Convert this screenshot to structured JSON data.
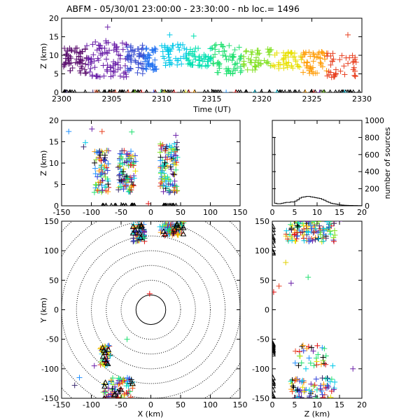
{
  "chart_data": [
    {
      "id": "time_height",
      "type": "scatter",
      "title": "ABFM - 05/30/01 23:00:00 - 23:30:00 - nb loc.=   1496",
      "xlabel": "Time (UT)",
      "ylabel": "Z (km)",
      "xlim": [
        2300,
        2330
      ],
      "ylim": [
        0,
        20
      ],
      "xticks": [
        "2300",
        "2305",
        "2310",
        "2315",
        "2320",
        "2325",
        "2330"
      ],
      "yticks": [
        "0",
        "5",
        "10",
        "15",
        "20"
      ],
      "clusters": [
        {
          "x": [
            2300.2,
            2302.5
          ],
          "y": [
            5,
            12
          ],
          "n": 60,
          "color": "#5b0f6e"
        },
        {
          "x": [
            2302.5,
            2306.5
          ],
          "y": [
            4,
            14
          ],
          "n": 90,
          "color": "#6a1fa8"
        },
        {
          "x": [
            2306.5,
            2308.3
          ],
          "y": [
            5,
            13
          ],
          "n": 50,
          "color": "#3a4fd0"
        },
        {
          "x": [
            2308.3,
            2309.5
          ],
          "y": [
            6,
            12
          ],
          "n": 35,
          "color": "#1f6ff0"
        },
        {
          "x": [
            2310,
            2312.5
          ],
          "y": [
            7,
            13
          ],
          "n": 45,
          "color": "#00c8e8"
        },
        {
          "x": [
            2312.5,
            2315
          ],
          "y": [
            7,
            12
          ],
          "n": 50,
          "color": "#00e0b0"
        },
        {
          "x": [
            2315,
            2318
          ],
          "y": [
            5,
            13
          ],
          "n": 60,
          "color": "#20e070"
        },
        {
          "x": [
            2318,
            2321
          ],
          "y": [
            6,
            12
          ],
          "n": 45,
          "color": "#80e020"
        },
        {
          "x": [
            2321,
            2324
          ],
          "y": [
            6,
            11
          ],
          "n": 45,
          "color": "#e8e000"
        },
        {
          "x": [
            2324,
            2326.5
          ],
          "y": [
            5,
            11
          ],
          "n": 45,
          "color": "#ff9a00"
        },
        {
          "x": [
            2326.5,
            2329.5
          ],
          "y": [
            4,
            11
          ],
          "n": 40,
          "color": "#e84020"
        }
      ],
      "ground_markers": {
        "y": 0,
        "n": 95,
        "x": [
          2300,
          2330
        ]
      },
      "outliers": [
        {
          "x": 2304.6,
          "y": 17.6,
          "color": "#6a1fa8"
        },
        {
          "x": 2310.8,
          "y": 15.5,
          "color": "#00c8e8"
        },
        {
          "x": 2313.2,
          "y": 15.2,
          "color": "#00e0b0"
        },
        {
          "x": 2328.6,
          "y": 15.5,
          "color": "#e84020"
        }
      ]
    },
    {
      "id": "x_height",
      "type": "scatter",
      "xlabel": "",
      "ylabel": "Z (km)",
      "xlim": [
        -150,
        150
      ],
      "ylim": [
        0,
        20
      ],
      "xticks": [
        "-150",
        "-100",
        "-50",
        "0",
        "50",
        "100",
        "150"
      ],
      "yticks": [
        "0",
        "5",
        "10",
        "15",
        "20"
      ],
      "clusters": [
        {
          "x": [
            -95,
            -70
          ],
          "y": [
            3,
            13
          ],
          "n": 70,
          "color": "mixed"
        },
        {
          "x": [
            -55,
            -25
          ],
          "y": [
            3,
            13
          ],
          "n": 90,
          "color": "mixed"
        },
        {
          "x": [
            15,
            45
          ],
          "y": [
            3,
            15
          ],
          "n": 110,
          "color": "mixed"
        }
      ],
      "ground_markers": [
        [
          -85,
          -40
        ],
        [
          -35,
          -25
        ],
        [
          20,
          48
        ]
      ],
      "outliers": [
        {
          "x": -138,
          "y": 17.4,
          "color": "#2090ff"
        },
        {
          "x": -113,
          "y": 13.8,
          "color": "#3a2a6e"
        },
        {
          "x": -110,
          "y": 14.8,
          "color": "#00c8e8"
        },
        {
          "x": -99,
          "y": 18.0,
          "color": "#6a1fa8"
        },
        {
          "x": -82,
          "y": 17.4,
          "color": "#e84020"
        },
        {
          "x": -32,
          "y": 17.3,
          "color": "#20e070"
        },
        {
          "x": 42,
          "y": 16.5,
          "color": "#6a1fa8"
        },
        {
          "x": -4,
          "y": 0.5,
          "color": "#e01010"
        }
      ]
    },
    {
      "id": "altitude_histogram",
      "type": "histogram",
      "xlabel": "",
      "ylabel": "number of sources",
      "xlim": [
        0,
        20
      ],
      "ylim": [
        0,
        1000
      ],
      "xticks": [
        "0",
        "5",
        "10",
        "15",
        "20"
      ],
      "yticks": [
        "0",
        "200",
        "400",
        "600",
        "800",
        "1000"
      ],
      "bin_edges": [
        0,
        0.5,
        1,
        1.5,
        2,
        2.5,
        3,
        3.5,
        4,
        4.5,
        5,
        5.5,
        6,
        6.5,
        7,
        7.5,
        8,
        8.5,
        9,
        9.5,
        10,
        10.5,
        11,
        11.5,
        12,
        12.5,
        13,
        13.5,
        14,
        14.5,
        15,
        15.5,
        16,
        16.5,
        17,
        17.5,
        18,
        18.5,
        19,
        19.5,
        20
      ],
      "counts": [
        800,
        30,
        25,
        25,
        30,
        35,
        40,
        40,
        45,
        45,
        55,
        70,
        90,
        100,
        105,
        110,
        110,
        105,
        100,
        95,
        90,
        85,
        75,
        65,
        50,
        40,
        30,
        25,
        20,
        15,
        10,
        8,
        6,
        5,
        4,
        4,
        3,
        3,
        2,
        2
      ]
    },
    {
      "id": "plan_view",
      "type": "scatter",
      "xlabel": "X (km)",
      "ylabel": "Y (km)",
      "xlim": [
        -150,
        150
      ],
      "ylim": [
        -150,
        150
      ],
      "xticks": [
        "-150",
        "-100",
        "-50",
        "0",
        "50",
        "100",
        "150"
      ],
      "yticks": [
        "-150",
        "-100",
        "-50",
        "0",
        "50",
        "100",
        "150"
      ],
      "range_rings_km": [
        25,
        50,
        75,
        100,
        125,
        150,
        175,
        200
      ],
      "clusters": [
        {
          "x": [
            -30,
            -10
          ],
          "y": [
            115,
            145
          ],
          "n": 70,
          "color": "mixed"
        },
        {
          "x": [
            15,
            55
          ],
          "y": [
            125,
            150
          ],
          "n": 80,
          "color": "mixed"
        },
        {
          "x": [
            -85,
            -68
          ],
          "y": [
            -95,
            -60
          ],
          "n": 40,
          "color": "mixed"
        },
        {
          "x": [
            -80,
            -30
          ],
          "y": [
            -150,
            -115
          ],
          "n": 70,
          "color": "mixed"
        }
      ],
      "outliers": [
        {
          "x": -2,
          "y": 27,
          "color": "#e01010"
        },
        {
          "x": -120,
          "y": -115,
          "color": "#2090ff"
        },
        {
          "x": -128,
          "y": -128,
          "color": "#3a2a6e"
        },
        {
          "x": -95,
          "y": -95,
          "color": "#6a1fa8"
        },
        {
          "x": -40,
          "y": -50,
          "color": "#20e070"
        }
      ]
    },
    {
      "id": "height_y",
      "type": "scatter",
      "xlabel": "Z (km)",
      "ylabel": "",
      "xlim": [
        0,
        20
      ],
      "ylim": [
        -150,
        150
      ],
      "xticks": [
        "0",
        "5",
        "10",
        "15",
        "20"
      ],
      "yticks": [
        "-150",
        "-100",
        "-50",
        "0",
        "50",
        "100",
        "150"
      ],
      "clusters": [
        {
          "x": [
            3,
            14
          ],
          "y": [
            115,
            150
          ],
          "n": 120,
          "color": "mixed"
        },
        {
          "x": [
            5,
            12
          ],
          "y": [
            -95,
            -60
          ],
          "n": 30,
          "color": "mixed"
        },
        {
          "x": [
            4,
            14
          ],
          "y": [
            -150,
            -115
          ],
          "n": 70,
          "color": "mixed"
        }
      ],
      "ground_markers": [
        [
          95,
          150
        ],
        [
          -150,
          -115
        ],
        [
          -75,
          -55
        ]
      ],
      "outliers": [
        {
          "x": 0.3,
          "y": 30,
          "color": "#e01010"
        },
        {
          "x": 1.5,
          "y": 40,
          "color": "#e84020"
        },
        {
          "x": 3,
          "y": 80,
          "color": "#e0d000"
        },
        {
          "x": 4.2,
          "y": 45,
          "color": "#6a1fa8"
        },
        {
          "x": 8,
          "y": 55,
          "color": "#20e070"
        },
        {
          "x": 18,
          "y": -100,
          "color": "#6a1fa8"
        },
        {
          "x": 13.5,
          "y": -95,
          "color": "#00c8e8"
        },
        {
          "x": 7.5,
          "y": -100,
          "color": "#00c8e8"
        },
        {
          "x": 15,
          "y": 150,
          "color": "#6a1fa8"
        }
      ]
    }
  ]
}
